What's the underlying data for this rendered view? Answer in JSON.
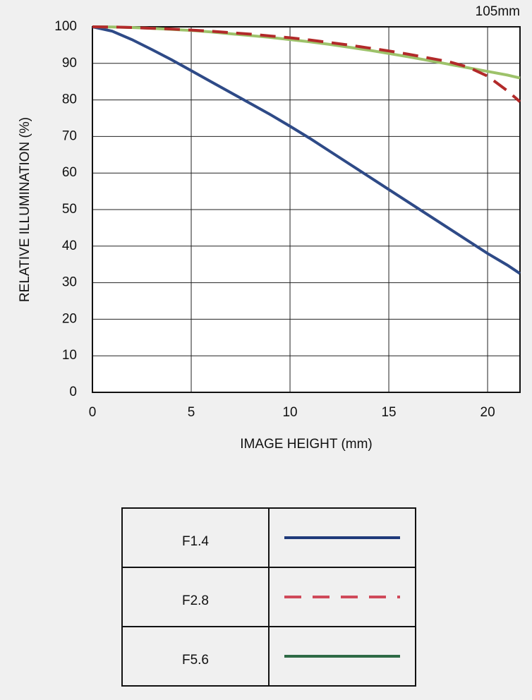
{
  "chart_data": {
    "type": "line",
    "title": "105mm",
    "x_label": "IMAGE HEIGHT (mm)",
    "y_label": "RELATIVE ILLUMINATION (%)",
    "x": [
      0,
      1,
      2,
      3,
      4,
      5,
      6,
      7,
      8,
      9,
      10,
      11,
      12,
      13,
      14,
      15,
      16,
      17,
      18,
      19,
      20,
      21,
      21.64
    ],
    "series": [
      {
        "name": "F1.4",
        "color": "#2e4a87",
        "legend_color": "#1f3a7a",
        "dash": false,
        "values": [
          100,
          98.8,
          96.5,
          93.8,
          91,
          88,
          85,
          82,
          79,
          76,
          72.8,
          69.5,
          66,
          62.5,
          59,
          55.5,
          52,
          48.5,
          45,
          41.5,
          38,
          34.8,
          32.5
        ]
      },
      {
        "name": "F2.8",
        "color": "#b22a2a",
        "legend_color": "#d04a5a",
        "dash": true,
        "values": [
          100,
          99.95,
          99.8,
          99.6,
          99.4,
          99.1,
          98.8,
          98.4,
          98,
          97.5,
          97,
          96.4,
          95.7,
          95,
          94.2,
          93.4,
          92.5,
          91.5,
          90.5,
          89,
          86.5,
          82.5,
          79.5
        ]
      },
      {
        "name": "F5.6",
        "color": "#9dc26a",
        "legend_color": "#2e6a45",
        "dash": false,
        "values": [
          100,
          99.95,
          99.8,
          99.6,
          99.3,
          99,
          98.6,
          98.1,
          97.6,
          97.1,
          96.5,
          95.9,
          95.2,
          94.4,
          93.6,
          92.7,
          91.8,
          90.8,
          89.8,
          88.8,
          87.8,
          86.8,
          86
        ]
      }
    ],
    "xlim": [
      0,
      21.64
    ],
    "ylim": [
      0,
      100
    ],
    "xticks": [
      0,
      5,
      10,
      15,
      20
    ],
    "yticks": [
      0,
      10,
      20,
      30,
      40,
      50,
      60,
      70,
      80,
      90,
      100
    ],
    "grid": true
  }
}
